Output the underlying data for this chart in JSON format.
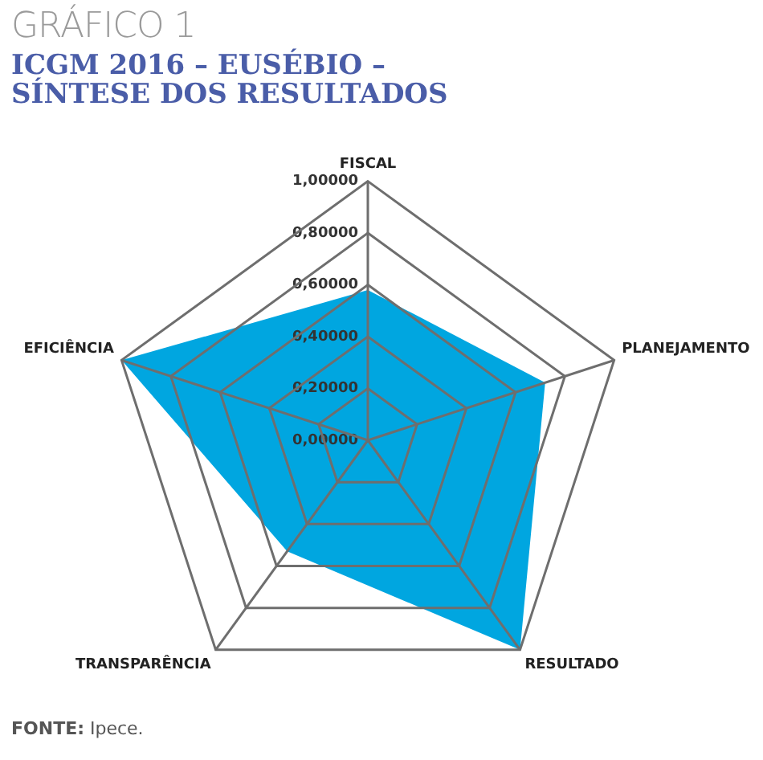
{
  "chart_data": {
    "type": "radar",
    "title": "GRÁFICO 1",
    "subtitle": "ICGM 2016 – EUSÉBIO –\nSÍNTESE DOS RESULTADOS",
    "categories": [
      "FISCAL",
      "PLANEJAMENTO",
      "RESULTADO",
      "TRANSPARÊNCIA",
      "EFICIÊNCIA"
    ],
    "series": [
      {
        "color": "#00a6e0",
        "values": [
          0.58,
          0.72,
          1.0,
          0.53,
          1.0
        ]
      }
    ],
    "ylim": [
      0,
      1
    ],
    "yticks": [
      {
        "value": 0,
        "label": "0,00000"
      },
      {
        "value": 0.2,
        "label": "0,20000"
      },
      {
        "value": 0.4,
        "label": "0,40000"
      },
      {
        "value": 0.6,
        "label": "0,60000"
      },
      {
        "value": 0.8,
        "label": "0,80000"
      },
      {
        "value": 1,
        "label": "1,00000"
      }
    ],
    "grid": true,
    "legend": false,
    "marker": "none",
    "annotations": [
      "FONTE: Ipece."
    ]
  }
}
